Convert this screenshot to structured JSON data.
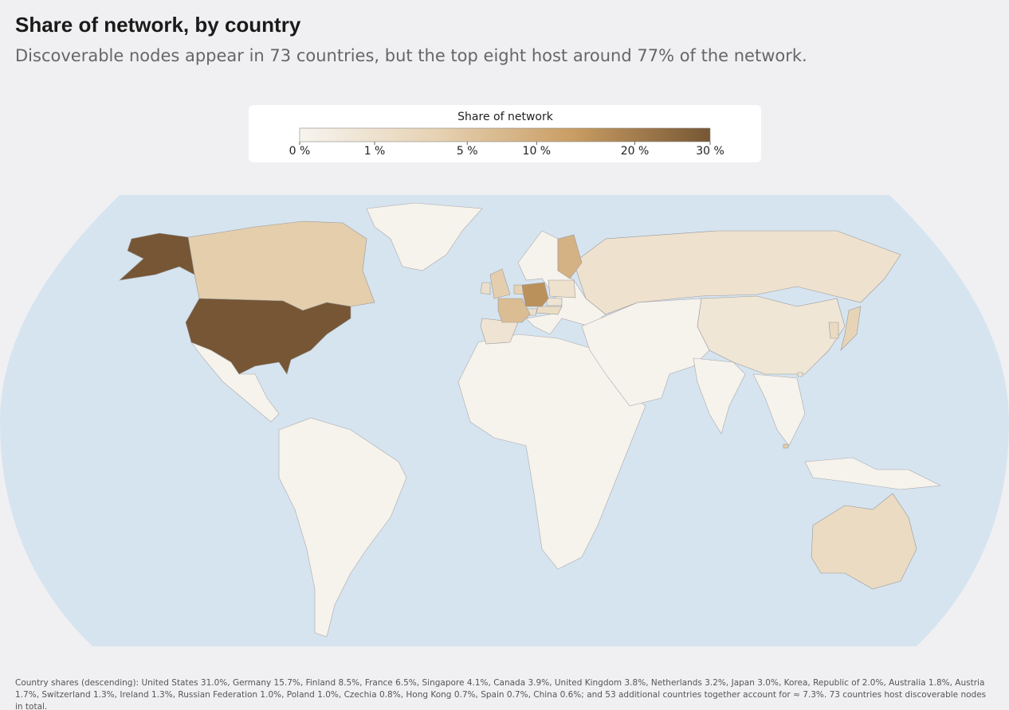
{
  "header": {
    "title": "Share of network, by country",
    "subtitle": "Discoverable nodes appear in 73 countries, but the top eight host around 77% of the network."
  },
  "legend": {
    "title": "Share of network",
    "scale": "sqrt",
    "color_range": [
      "#f7f4ef",
      "#e6d2b3",
      "#c99d63",
      "#765634"
    ],
    "ticks": [
      {
        "value": 0,
        "label": "0 %"
      },
      {
        "value": 1,
        "label": "1 %"
      },
      {
        "value": 5,
        "label": "5 %"
      },
      {
        "value": 10,
        "label": "10 %"
      },
      {
        "value": 20,
        "label": "20 %"
      },
      {
        "value": 30,
        "label": "30 %"
      }
    ]
  },
  "footnote": {
    "prefix": "Country shares (descending):",
    "countries": [
      {
        "name": "United States",
        "value": 31.0,
        "label": "31.0%"
      },
      {
        "name": "Germany",
        "value": 15.7,
        "label": "15.7%"
      },
      {
        "name": "Finland",
        "value": 8.5,
        "label": "8.5%"
      },
      {
        "name": "France",
        "value": 6.5,
        "label": "6.5%"
      },
      {
        "name": "Singapore",
        "value": 4.1,
        "label": "4.1%"
      },
      {
        "name": "Canada",
        "value": 3.9,
        "label": "3.9%"
      },
      {
        "name": "United Kingdom",
        "value": 3.8,
        "label": "3.8%"
      },
      {
        "name": "Netherlands",
        "value": 3.2,
        "label": "3.2%"
      },
      {
        "name": "Japan",
        "value": 3.0,
        "label": "3.0%"
      },
      {
        "name": "Korea, Republic of",
        "value": 2.0,
        "label": "2.0%"
      },
      {
        "name": "Australia",
        "value": 1.8,
        "label": "1.8%"
      },
      {
        "name": "Austria",
        "value": 1.7,
        "label": "1.7%"
      },
      {
        "name": "Switzerland",
        "value": 1.3,
        "label": "1.3%"
      },
      {
        "name": "Ireland",
        "value": 1.3,
        "label": "1.3%"
      },
      {
        "name": "Russian Federation",
        "value": 1.0,
        "label": "1.0%"
      },
      {
        "name": "Poland",
        "value": 1.0,
        "label": "1.0%"
      },
      {
        "name": "Czechia",
        "value": 0.8,
        "label": "0.8%"
      },
      {
        "name": "Hong Kong",
        "value": 0.7,
        "label": "0.7%"
      },
      {
        "name": "Spain",
        "value": 0.7,
        "label": "0.7%"
      },
      {
        "name": "China",
        "value": 0.6,
        "label": "0.6%"
      }
    ],
    "suffix": "and 53 additional countries together account for ≈ 7.3%. 73 countries host discoverable nodes in total."
  }
}
